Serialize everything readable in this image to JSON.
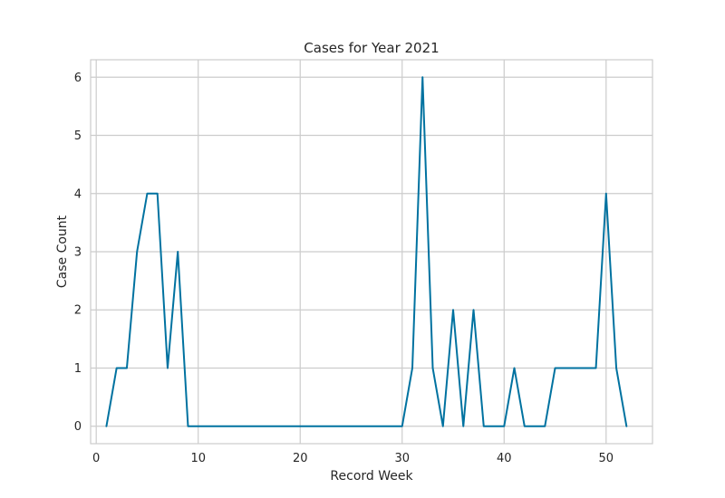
{
  "chart_data": {
    "type": "line",
    "title": "Cases for Year 2021",
    "xlabel": "Record Week",
    "ylabel": "Case Count",
    "xlim": [
      -0.55,
      54.55
    ],
    "ylim": [
      -0.3,
      6.3
    ],
    "xticks": [
      0,
      10,
      20,
      30,
      40,
      50
    ],
    "yticks": [
      0,
      1,
      2,
      3,
      4,
      5,
      6
    ],
    "grid": true,
    "legend": "none",
    "series": [
      {
        "color": "#0072a0",
        "x": [
          1,
          2,
          3,
          4,
          5,
          6,
          7,
          8,
          9,
          10,
          11,
          12,
          13,
          14,
          15,
          16,
          17,
          18,
          19,
          20,
          21,
          22,
          23,
          24,
          25,
          26,
          27,
          28,
          29,
          30,
          31,
          32,
          33,
          34,
          35,
          36,
          37,
          38,
          39,
          40,
          41,
          42,
          43,
          44,
          45,
          46,
          47,
          48,
          49,
          50,
          51,
          52
        ],
        "values": [
          0,
          1,
          1,
          3,
          4,
          4,
          1,
          3,
          0,
          0,
          0,
          0,
          0,
          0,
          0,
          0,
          0,
          0,
          0,
          0,
          0,
          0,
          0,
          0,
          0,
          0,
          0,
          0,
          0,
          0,
          1,
          6,
          1,
          0,
          2,
          0,
          2,
          0,
          0,
          0,
          1,
          0,
          0,
          0,
          1,
          1,
          1,
          1,
          1,
          4,
          1,
          0
        ]
      }
    ]
  }
}
